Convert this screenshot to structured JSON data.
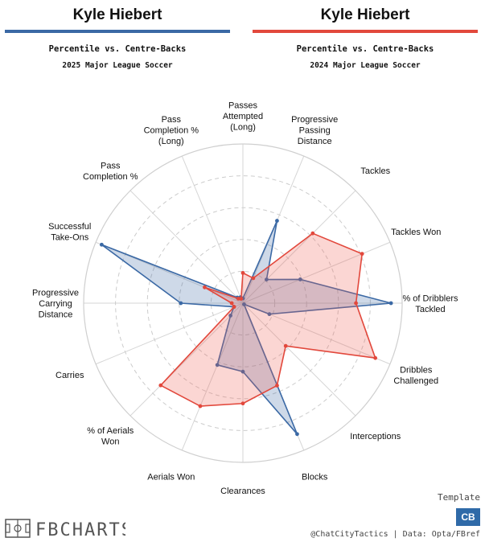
{
  "header": {
    "left": {
      "player": "Kyle Hiebert",
      "subtitle": "Percentile vs. Centre-Backs",
      "season": "2025 Major League Soccer"
    },
    "right": {
      "player": "Kyle Hiebert",
      "subtitle": "Percentile vs. Centre-Backs",
      "season": "2024 Major League Soccer"
    }
  },
  "chart_data": {
    "type": "radar",
    "axes": [
      [
        "Passes",
        "Attempted",
        "(Long)"
      ],
      [
        "Progressive",
        "Passing",
        "Distance"
      ],
      [
        "Tackles"
      ],
      [
        "Tackles Won"
      ],
      [
        "% of Dribblers",
        "Tackled"
      ],
      [
        "Dribbles",
        "Challenged"
      ],
      [
        "Interceptions"
      ],
      [
        "Blocks"
      ],
      [
        "Clearances"
      ],
      [
        "Aerials Won"
      ],
      [
        "% of Aerials",
        "Won"
      ],
      [
        "Carries"
      ],
      [
        "Progressive",
        "Carrying",
        "Distance"
      ],
      [
        "Successful",
        "Take-Ons"
      ],
      [
        "Pass",
        "Completion %"
      ],
      [
        "Pass",
        "Completion %",
        "(Long)"
      ]
    ],
    "range": [
      0,
      100
    ],
    "rings": [
      20,
      40,
      60,
      80,
      100
    ],
    "series": [
      {
        "season": "2025",
        "color": "#3b69a5",
        "fill": "rgba(59,105,165,0.25)",
        "values": [
          3,
          56,
          21,
          39,
          93,
          18,
          1,
          89,
          43,
          42,
          11,
          6,
          39,
          96,
          5,
          4
        ]
      },
      {
        "season": "2024",
        "color": "#e2483c",
        "fill": "rgba(240,90,80,0.25)",
        "values": [
          19,
          17,
          62,
          81,
          71,
          90,
          38,
          56,
          63,
          70,
          73,
          6,
          7,
          26,
          4,
          3
        ]
      }
    ]
  },
  "footer": {
    "logo": "FBCHARTS",
    "template_label": "Template",
    "badge": "CB",
    "credit": "@ChatCityTactics | Data: Opta/FBref"
  }
}
